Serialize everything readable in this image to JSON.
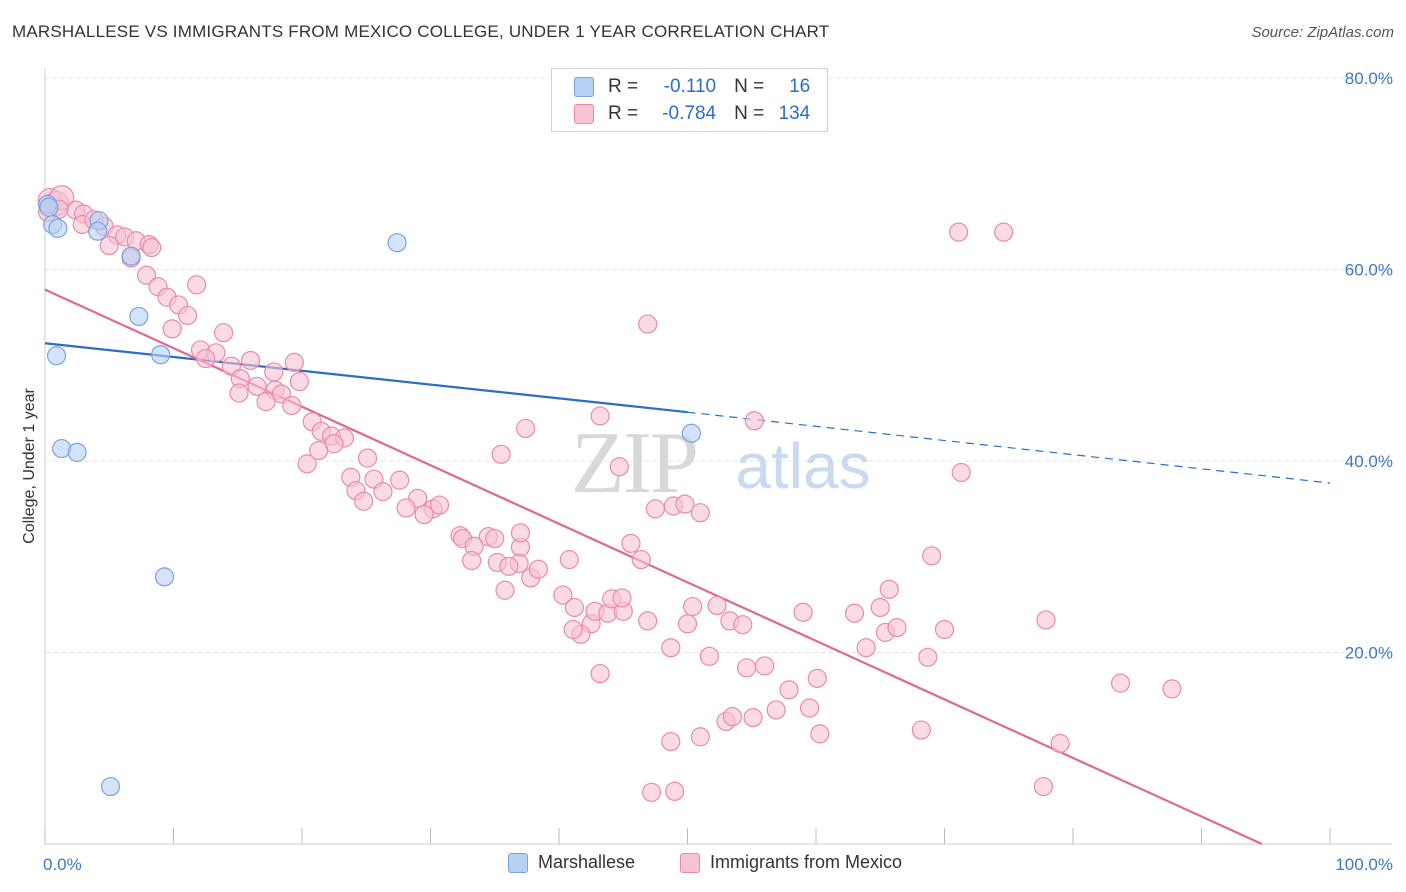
{
  "title": "MARSHALLESE VS IMMIGRANTS FROM MEXICO COLLEGE, UNDER 1 YEAR CORRELATION CHART",
  "source": "Source: ZipAtlas.com",
  "watermark": {
    "zip": "ZIP",
    "atlas": "atlas"
  },
  "colors": {
    "blue_fill": "#b8d0f2",
    "blue_stroke": "#7aa3e0",
    "blue_line": "#2a6ec6",
    "pink_fill": "#f7c2d3",
    "pink_stroke": "#e98aab",
    "pink_line": "#e06694",
    "axis_label": "#3a78c9",
    "grid": "#e3e3e3"
  },
  "legend": {
    "rows": [
      {
        "r_label": "R =",
        "r_value": "-0.110",
        "n_label": "N =",
        "n_value": "16"
      },
      {
        "r_label": "R =",
        "r_value": "-0.784",
        "n_label": "N =",
        "n_value": "134"
      }
    ]
  },
  "bottom_legend": [
    "Marshallese",
    "Immigrants from Mexico"
  ],
  "chart_data": {
    "type": "scatter",
    "xlabel": "",
    "ylabel": "College, Under 1 year",
    "xlim": [
      0,
      100
    ],
    "ylim": [
      0,
      80
    ],
    "x_tick_labels": [
      "0.0%",
      "100.0%"
    ],
    "y_ticks": [
      20,
      40,
      60,
      80
    ],
    "y_tick_labels": [
      "20.0%",
      "40.0%",
      "60.0%",
      "80.0%"
    ],
    "grid": true,
    "series": [
      {
        "name": "Marshallese",
        "color": "blue",
        "points": [
          [
            0.2,
            66.8
          ],
          [
            0.6,
            64.7
          ],
          [
            4.2,
            65.1
          ],
          [
            1.0,
            64.3
          ],
          [
            4.1,
            64.0
          ],
          [
            27.4,
            62.8
          ],
          [
            6.7,
            61.4
          ],
          [
            7.3,
            55.1
          ],
          [
            0.9,
            51.0
          ],
          [
            9.0,
            51.1
          ],
          [
            1.3,
            41.3
          ],
          [
            2.5,
            40.9
          ],
          [
            50.3,
            42.9
          ],
          [
            9.3,
            27.9
          ],
          [
            5.1,
            6.0
          ],
          [
            0.3,
            66.5
          ]
        ],
        "trend": {
          "x0": 0,
          "y0": 52.3,
          "x1": 50,
          "y1": 45.1,
          "dash_to": [
            100,
            37.7
          ]
        }
      },
      {
        "name": "Immigrants from Mexico",
        "color": "pink",
        "points": [
          [
            0.4,
            67.2
          ],
          [
            0.9,
            66.9
          ],
          [
            1.3,
            67.5
          ],
          [
            2.4,
            66.2
          ],
          [
            3.0,
            65.8
          ],
          [
            0.2,
            66.0
          ],
          [
            1.1,
            66.3
          ],
          [
            2.9,
            64.7
          ],
          [
            3.8,
            65.2
          ],
          [
            4.6,
            64.5
          ],
          [
            5.6,
            63.6
          ],
          [
            6.2,
            63.4
          ],
          [
            7.1,
            63.0
          ],
          [
            8.1,
            62.6
          ],
          [
            5.0,
            62.5
          ],
          [
            6.7,
            61.2
          ],
          [
            8.3,
            62.3
          ],
          [
            7.9,
            59.4
          ],
          [
            8.8,
            58.2
          ],
          [
            11.8,
            58.4
          ],
          [
            9.5,
            57.1
          ],
          [
            10.4,
            56.3
          ],
          [
            11.1,
            55.2
          ],
          [
            9.9,
            53.8
          ],
          [
            13.9,
            53.4
          ],
          [
            12.1,
            51.6
          ],
          [
            13.3,
            51.3
          ],
          [
            12.5,
            50.7
          ],
          [
            16.0,
            50.5
          ],
          [
            19.4,
            50.3
          ],
          [
            14.5,
            49.9
          ],
          [
            17.8,
            49.3
          ],
          [
            15.2,
            48.6
          ],
          [
            16.5,
            47.8
          ],
          [
            19.8,
            48.3
          ],
          [
            15.1,
            47.1
          ],
          [
            17.9,
            47.4
          ],
          [
            18.4,
            47.0
          ],
          [
            17.2,
            46.2
          ],
          [
            19.2,
            45.8
          ],
          [
            20.8,
            44.1
          ],
          [
            21.5,
            43.1
          ],
          [
            22.3,
            42.6
          ],
          [
            23.3,
            42.4
          ],
          [
            22.5,
            41.8
          ],
          [
            25.1,
            40.3
          ],
          [
            20.4,
            39.7
          ],
          [
            21.3,
            41.1
          ],
          [
            23.8,
            38.3
          ],
          [
            25.6,
            38.1
          ],
          [
            26.3,
            36.8
          ],
          [
            24.2,
            36.9
          ],
          [
            27.6,
            38.0
          ],
          [
            29.0,
            36.1
          ],
          [
            24.8,
            35.8
          ],
          [
            28.1,
            35.1
          ],
          [
            30.2,
            35.0
          ],
          [
            29.5,
            34.4
          ],
          [
            30.7,
            35.4
          ],
          [
            32.3,
            32.2
          ],
          [
            32.5,
            31.9
          ],
          [
            34.5,
            32.1
          ],
          [
            33.4,
            31.1
          ],
          [
            35.0,
            31.9
          ],
          [
            37.0,
            31.0
          ],
          [
            37.0,
            32.5
          ],
          [
            35.2,
            29.4
          ],
          [
            36.9,
            29.3
          ],
          [
            33.2,
            29.6
          ],
          [
            36.1,
            29.0
          ],
          [
            35.8,
            26.5
          ],
          [
            37.8,
            27.8
          ],
          [
            38.4,
            28.7
          ],
          [
            40.8,
            29.7
          ],
          [
            40.3,
            26.0
          ],
          [
            41.2,
            24.7
          ],
          [
            42.5,
            23.0
          ],
          [
            41.7,
            21.9
          ],
          [
            42.8,
            24.3
          ],
          [
            41.1,
            22.4
          ],
          [
            43.8,
            24.1
          ],
          [
            45.0,
            24.3
          ],
          [
            44.1,
            25.6
          ],
          [
            45.6,
            31.4
          ],
          [
            48.9,
            35.3
          ],
          [
            49.8,
            35.5
          ],
          [
            51.0,
            34.6
          ],
          [
            47.5,
            35.0
          ],
          [
            46.4,
            29.7
          ],
          [
            43.2,
            17.8
          ],
          [
            44.9,
            25.7
          ],
          [
            46.9,
            23.3
          ],
          [
            48.7,
            20.5
          ],
          [
            50.0,
            23.0
          ],
          [
            50.4,
            24.8
          ],
          [
            52.3,
            24.9
          ],
          [
            53.3,
            23.3
          ],
          [
            51.7,
            19.6
          ],
          [
            54.3,
            22.9
          ],
          [
            54.6,
            18.4
          ],
          [
            56.0,
            18.6
          ],
          [
            57.9,
            16.1
          ],
          [
            59.0,
            24.2
          ],
          [
            60.1,
            17.3
          ],
          [
            59.5,
            14.2
          ],
          [
            60.3,
            11.5
          ],
          [
            56.9,
            14.0
          ],
          [
            53.0,
            12.8
          ],
          [
            55.1,
            13.2
          ],
          [
            53.5,
            13.3
          ],
          [
            51.0,
            11.2
          ],
          [
            48.7,
            10.7
          ],
          [
            47.2,
            5.4
          ],
          [
            49.0,
            5.5
          ],
          [
            63.0,
            24.1
          ],
          [
            63.9,
            20.5
          ],
          [
            65.0,
            24.7
          ],
          [
            65.4,
            22.1
          ],
          [
            66.3,
            22.6
          ],
          [
            68.7,
            19.5
          ],
          [
            69.0,
            30.1
          ],
          [
            70.0,
            22.4
          ],
          [
            65.7,
            26.6
          ],
          [
            71.1,
            63.9
          ],
          [
            74.6,
            63.9
          ],
          [
            71.3,
            38.8
          ],
          [
            77.9,
            23.4
          ],
          [
            83.7,
            16.8
          ],
          [
            87.7,
            16.2
          ],
          [
            79.0,
            10.5
          ],
          [
            77.7,
            6.0
          ],
          [
            68.2,
            11.9
          ],
          [
            55.2,
            44.2
          ],
          [
            46.9,
            54.3
          ],
          [
            43.2,
            44.7
          ],
          [
            44.7,
            39.4
          ],
          [
            35.5,
            40.7
          ],
          [
            37.4,
            43.4
          ]
        ],
        "trend": {
          "x0": 0,
          "y0": 57.9,
          "x1": 94.7,
          "y1": 0
        }
      }
    ]
  }
}
